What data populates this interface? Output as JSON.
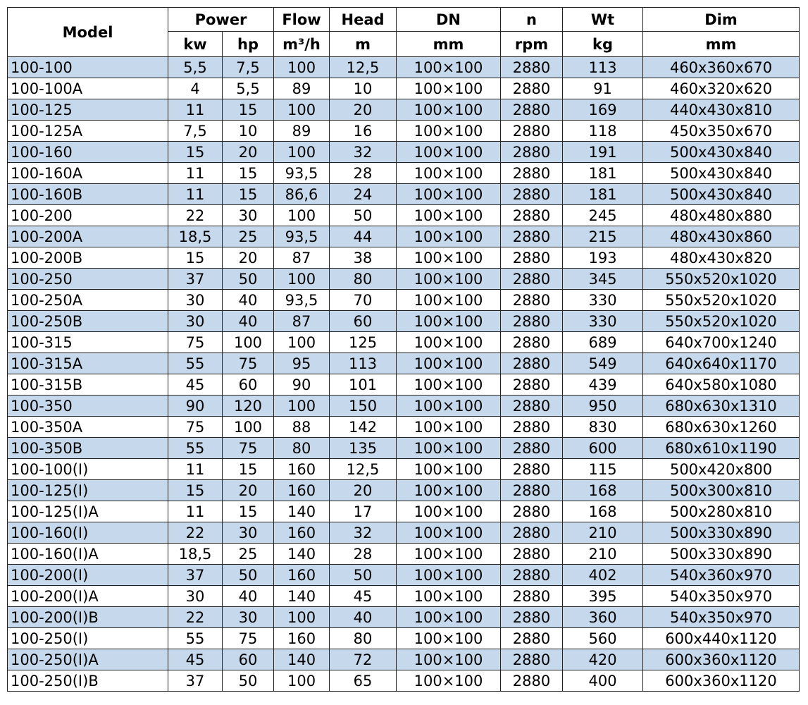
{
  "table": {
    "header": [
      [
        "Model",
        "Power",
        "Flow",
        "Head",
        "DN",
        "n",
        "Wt",
        "Dim"
      ],
      [
        "kw",
        "hp",
        "m³/h",
        "m",
        "mm",
        "rpm",
        "kg",
        "mm"
      ]
    ],
    "rows": [
      [
        "100-100",
        "5,5",
        "7,5",
        "100",
        "12,5",
        "100×100",
        "2880",
        "113",
        "460x360x670"
      ],
      [
        "100-100A",
        "4",
        "5,5",
        "89",
        "10",
        "100×100",
        "2880",
        "91",
        "460x320x620"
      ],
      [
        "100-125",
        "11",
        "15",
        "100",
        "20",
        "100×100",
        "2880",
        "169",
        "440x430x810"
      ],
      [
        "100-125A",
        "7,5",
        "10",
        "89",
        "16",
        "100×100",
        "2880",
        "118",
        "450x350x670"
      ],
      [
        "100-160",
        "15",
        "20",
        "100",
        "32",
        "100×100",
        "2880",
        "191",
        "500x430x840"
      ],
      [
        "100-160A",
        "11",
        "15",
        "93,5",
        "28",
        "100×100",
        "2880",
        "181",
        "500x430x840"
      ],
      [
        "100-160B",
        "11",
        "15",
        "86,6",
        "24",
        "100×100",
        "2880",
        "181",
        "500x430x840"
      ],
      [
        "100-200",
        "22",
        "30",
        "100",
        "50",
        "100×100",
        "2880",
        "245",
        "480x480x880"
      ],
      [
        "100-200A",
        "18,5",
        "25",
        "93,5",
        "44",
        "100×100",
        "2880",
        "215",
        "480x430x860"
      ],
      [
        "100-200B",
        "15",
        "20",
        "87",
        "38",
        "100×100",
        "2880",
        "193",
        "480x430x820"
      ],
      [
        "100-250",
        "37",
        "50",
        "100",
        "80",
        "100×100",
        "2880",
        "345",
        "550x520x1020"
      ],
      [
        "100-250A",
        "30",
        "40",
        "93,5",
        "70",
        "100×100",
        "2880",
        "330",
        "550x520x1020"
      ],
      [
        "100-250B",
        "30",
        "40",
        "87",
        "60",
        "100×100",
        "2880",
        "330",
        "550x520x1020"
      ],
      [
        "100-315",
        "75",
        "100",
        "100",
        "125",
        "100×100",
        "2880",
        "689",
        "640x700x1240"
      ],
      [
        "100-315A",
        "55",
        "75",
        "95",
        "113",
        "100×100",
        "2880",
        "549",
        "640x640x1170"
      ],
      [
        "100-315B",
        "45",
        "60",
        "90",
        "101",
        "100×100",
        "2880",
        "439",
        "640x580x1080"
      ],
      [
        "100-350",
        "90",
        "120",
        "100",
        "150",
        "100×100",
        "2880",
        "950",
        "680x630x1310"
      ],
      [
        "100-350A",
        "75",
        "100",
        "88",
        "142",
        "100×100",
        "2880",
        "830",
        "680x630x1260"
      ],
      [
        "100-350B",
        "55",
        "75",
        "80",
        "135",
        "100×100",
        "2880",
        "600",
        "680x610x1190"
      ],
      [
        "100-100(I)",
        "11",
        "15",
        "160",
        "12,5",
        "100×100",
        "2880",
        "115",
        "500x420x800"
      ],
      [
        "100-125(I)",
        "15",
        "20",
        "160",
        "20",
        "100×100",
        "2880",
        "168",
        "500x300x810"
      ],
      [
        "100-125(I)A",
        "11",
        "15",
        "140",
        "17",
        "100×100",
        "2880",
        "168",
        "500x280x810"
      ],
      [
        "100-160(I)",
        "22",
        "30",
        "160",
        "32",
        "100×100",
        "2880",
        "210",
        "500x330x890"
      ],
      [
        "100-160(I)A",
        "18,5",
        "25",
        "140",
        "28",
        "100×100",
        "2880",
        "210",
        "500x330x890"
      ],
      [
        "100-200(I)",
        "37",
        "50",
        "160",
        "50",
        "100×100",
        "2880",
        "402",
        "540x360x970"
      ],
      [
        "100-200(I)A",
        "30",
        "40",
        "140",
        "45",
        "100×100",
        "2880",
        "395",
        "540x350x970"
      ],
      [
        "100-200(I)B",
        "22",
        "30",
        "100",
        "40",
        "100×100",
        "2880",
        "360",
        "540x350x970"
      ],
      [
        "100-250(I)",
        "55",
        "75",
        "160",
        "80",
        "100×100",
        "2880",
        "560",
        "600x440x1120"
      ],
      [
        "100-250(I)A",
        "45",
        "60",
        "140",
        "72",
        "100×100",
        "2880",
        "420",
        "600x360x1120"
      ],
      [
        "100-250(I)B",
        "37",
        "50",
        "100",
        "65",
        "100×100",
        "2880",
        "400",
        "600x360x1120"
      ]
    ]
  }
}
